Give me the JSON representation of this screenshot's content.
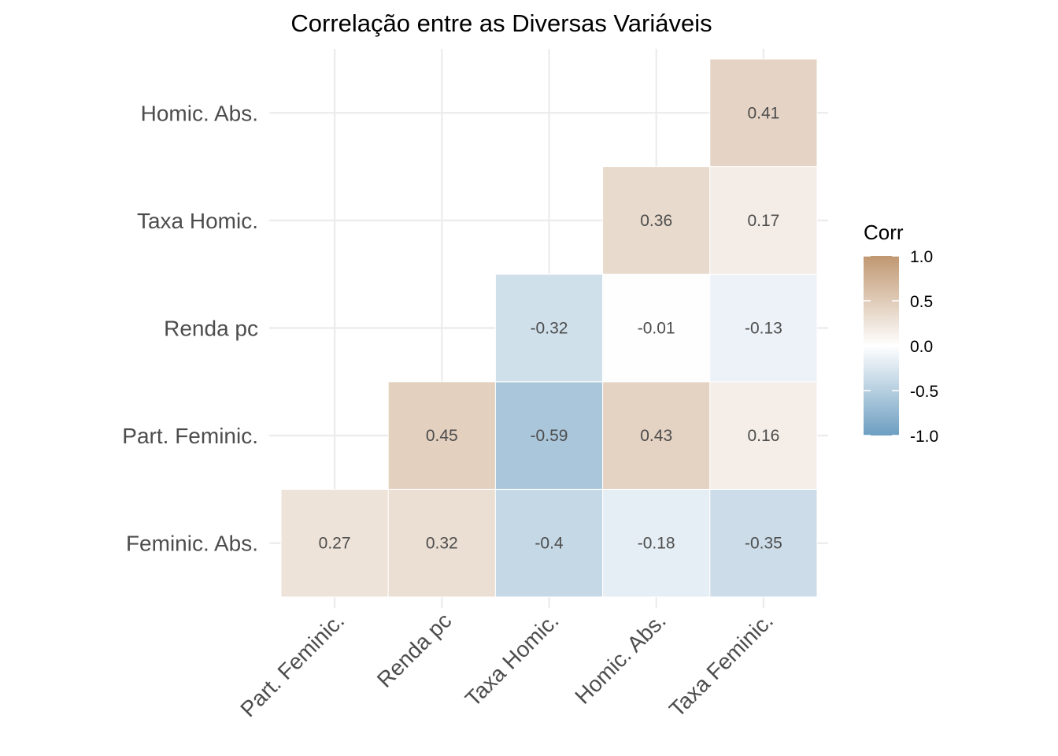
{
  "chart_data": {
    "type": "heatmap",
    "title": "Correlação entre as Diversas Variáveis",
    "x_categories": [
      "Part. Feminic.",
      "Renda pc",
      "Taxa Homic.",
      "Homic. Abs.",
      "Taxa Feminic."
    ],
    "y_categories": [
      "Feminic. Abs.",
      "Part. Feminic.",
      "Renda pc",
      "Taxa Homic.",
      "Homic. Abs."
    ],
    "cells": [
      {
        "x": "Part. Feminic.",
        "y": "Feminic. Abs.",
        "value": 0.27,
        "label": "0.27"
      },
      {
        "x": "Renda pc",
        "y": "Feminic. Abs.",
        "value": 0.32,
        "label": "0.32"
      },
      {
        "x": "Taxa Homic.",
        "y": "Feminic. Abs.",
        "value": -0.4,
        "label": "-0.4"
      },
      {
        "x": "Homic. Abs.",
        "y": "Feminic. Abs.",
        "value": -0.18,
        "label": "-0.18"
      },
      {
        "x": "Taxa Feminic.",
        "y": "Feminic. Abs.",
        "value": -0.35,
        "label": "-0.35"
      },
      {
        "x": "Renda pc",
        "y": "Part. Feminic.",
        "value": 0.45,
        "label": "0.45"
      },
      {
        "x": "Taxa Homic.",
        "y": "Part. Feminic.",
        "value": -0.59,
        "label": "-0.59"
      },
      {
        "x": "Homic. Abs.",
        "y": "Part. Feminic.",
        "value": 0.43,
        "label": "0.43"
      },
      {
        "x": "Taxa Feminic.",
        "y": "Part. Feminic.",
        "value": 0.16,
        "label": "0.16"
      },
      {
        "x": "Taxa Homic.",
        "y": "Renda pc",
        "value": -0.32,
        "label": "-0.32"
      },
      {
        "x": "Homic. Abs.",
        "y": "Renda pc",
        "value": -0.01,
        "label": "-0.01"
      },
      {
        "x": "Taxa Feminic.",
        "y": "Renda pc",
        "value": -0.13,
        "label": "-0.13"
      },
      {
        "x": "Homic. Abs.",
        "y": "Taxa Homic.",
        "value": 0.36,
        "label": "0.36"
      },
      {
        "x": "Taxa Feminic.",
        "y": "Taxa Homic.",
        "value": 0.17,
        "label": "0.17"
      },
      {
        "x": "Taxa Feminic.",
        "y": "Homic. Abs.",
        "value": 0.41,
        "label": "0.41"
      }
    ],
    "legend": {
      "title": "Corr",
      "placement": "right",
      "ticks": [
        1.0,
        0.5,
        0.0,
        -0.5,
        -1.0
      ],
      "tick_labels": [
        "1.0",
        "0.5",
        "0.0",
        "-0.5",
        "-1.0"
      ],
      "range": [
        -1,
        1
      ]
    },
    "colors": {
      "low": "#6d9ec1",
      "mid": "#ffffff",
      "high": "#c09771"
    },
    "grid": true
  }
}
